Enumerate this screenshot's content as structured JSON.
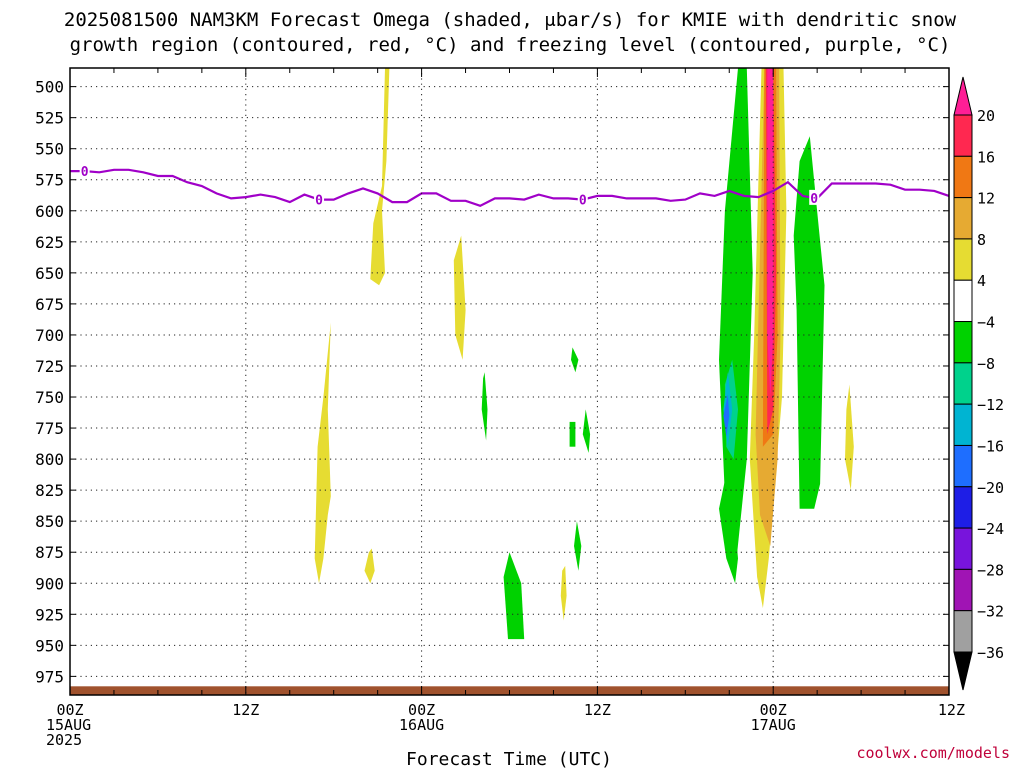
{
  "chart_data": {
    "type": "heatmap",
    "title_line1": "2025081500 NAM3KM Forecast Omega (shaded, μbar/s) for KMIE with dendritic snow",
    "title_line2": "growth region (contoured, red, °C) and freezing level (contoured, purple, °C)",
    "xlabel": "Forecast Time (UTC)",
    "credit": "coolwx.com/models",
    "x_hours": [
      0,
      12,
      24,
      36,
      48,
      60
    ],
    "x_tick_labels": [
      [
        "00Z",
        "15AUG",
        "2025"
      ],
      [
        "12Z"
      ],
      [
        "00Z",
        "16AUG"
      ],
      [
        "12Z"
      ],
      [
        "00Z",
        "17AUG"
      ],
      [
        "12Z"
      ]
    ],
    "x_range_hours": [
      0,
      60
    ],
    "y_range_hpa": [
      485,
      990
    ],
    "y_ticks": [
      500,
      525,
      550,
      575,
      600,
      625,
      650,
      675,
      700,
      725,
      750,
      775,
      800,
      825,
      850,
      875,
      900,
      925,
      950,
      975
    ],
    "grid": "dotted",
    "colorbar_labels": [
      "20",
      "16",
      "12",
      "8",
      "4",
      "−4",
      "−8",
      "−12",
      "−16",
      "−20",
      "−24",
      "−28",
      "−32",
      "−36"
    ],
    "colorbar_levels": [
      {
        "lo": 20,
        "hi": 24,
        "color": "#ff1e96"
      },
      {
        "lo": 16,
        "hi": 20,
        "color": "#ff2850"
      },
      {
        "lo": 12,
        "hi": 16,
        "color": "#f07814"
      },
      {
        "lo": 8,
        "hi": 12,
        "color": "#e6aa32"
      },
      {
        "lo": 4,
        "hi": 8,
        "color": "#e6dc32"
      },
      {
        "lo": -4,
        "hi": 4,
        "color": "#ffffff"
      },
      {
        "lo": -8,
        "hi": -4,
        "color": "#00d200"
      },
      {
        "lo": -12,
        "hi": -8,
        "color": "#00d28c"
      },
      {
        "lo": -16,
        "hi": -12,
        "color": "#00b4d2"
      },
      {
        "lo": -20,
        "hi": -16,
        "color": "#1e6eff"
      },
      {
        "lo": -24,
        "hi": -20,
        "color": "#1e1ee6"
      },
      {
        "lo": -28,
        "hi": -24,
        "color": "#7814dc"
      },
      {
        "lo": -32,
        "hi": -28,
        "color": "#a014b4"
      },
      {
        "lo": -36,
        "hi": -32,
        "color": "#a0a0a0"
      }
    ],
    "freezing_level": {
      "value_label": "0",
      "color": "#a000c8",
      "points": [
        [
          0,
          568
        ],
        [
          1,
          568
        ],
        [
          2,
          569
        ],
        [
          3,
          567
        ],
        [
          4,
          567
        ],
        [
          5,
          569
        ],
        [
          6,
          572
        ],
        [
          7,
          572
        ],
        [
          8,
          577
        ],
        [
          9,
          580
        ],
        [
          10,
          586
        ],
        [
          11,
          590
        ],
        [
          12,
          589
        ],
        [
          13,
          587
        ],
        [
          14,
          589
        ],
        [
          15,
          593
        ],
        [
          16,
          587
        ],
        [
          17,
          591
        ],
        [
          18,
          591
        ],
        [
          19,
          586
        ],
        [
          20,
          582
        ],
        [
          21,
          586
        ],
        [
          22,
          593
        ],
        [
          23,
          593
        ],
        [
          24,
          586
        ],
        [
          25,
          586
        ],
        [
          26,
          592
        ],
        [
          27,
          592
        ],
        [
          28,
          596
        ],
        [
          29,
          590
        ],
        [
          30,
          590
        ],
        [
          31,
          591
        ],
        [
          32,
          587
        ],
        [
          33,
          590
        ],
        [
          34,
          590
        ],
        [
          35,
          591
        ],
        [
          36,
          588
        ],
        [
          37,
          588
        ],
        [
          38,
          590
        ],
        [
          39,
          590
        ],
        [
          40,
          590
        ],
        [
          41,
          592
        ],
        [
          42,
          591
        ],
        [
          43,
          586
        ],
        [
          44,
          588
        ],
        [
          45,
          584
        ],
        [
          46,
          588
        ],
        [
          47,
          589
        ],
        [
          48,
          584
        ],
        [
          49,
          577
        ],
        [
          50,
          588
        ],
        [
          51,
          590
        ],
        [
          52,
          578
        ],
        [
          53,
          578
        ],
        [
          54,
          578
        ],
        [
          55,
          578
        ],
        [
          56,
          579
        ],
        [
          57,
          583
        ],
        [
          58,
          583
        ],
        [
          59,
          584
        ],
        [
          60,
          588
        ]
      ],
      "label_hours": [
        1,
        17,
        35,
        50.8
      ]
    },
    "terrain": {
      "color": "#a0522d",
      "pressure_hpa": 983
    },
    "omega_areas": [
      {
        "level": 5,
        "pts": [
          [
            21.8,
            485
          ],
          [
            21.6,
            560
          ],
          [
            21.3,
            600
          ],
          [
            21.5,
            650
          ],
          [
            21.1,
            660
          ],
          [
            20.5,
            655
          ],
          [
            20.7,
            610
          ],
          [
            21.3,
            580
          ],
          [
            21.5,
            485
          ]
        ]
      },
      {
        "level": 5,
        "pts": [
          [
            17.8,
            690
          ],
          [
            17.6,
            760
          ],
          [
            17.8,
            830
          ],
          [
            17.6,
            845
          ],
          [
            17.3,
            880
          ],
          [
            17.0,
            900
          ],
          [
            16.7,
            880
          ],
          [
            16.9,
            790
          ],
          [
            17.3,
            750
          ]
        ]
      },
      {
        "level": 5,
        "pts": [
          [
            20.6,
            872
          ],
          [
            20.8,
            890
          ],
          [
            20.5,
            900
          ],
          [
            20.1,
            890
          ],
          [
            20.4,
            875
          ]
        ]
      },
      {
        "level": 5,
        "pts": [
          [
            26.7,
            620
          ],
          [
            27.0,
            680
          ],
          [
            26.8,
            720
          ],
          [
            26.3,
            700
          ],
          [
            26.2,
            640
          ]
        ]
      },
      {
        "level": 5,
        "pts": [
          [
            33.8,
            886
          ],
          [
            33.9,
            910
          ],
          [
            33.7,
            930
          ],
          [
            33.5,
            910
          ],
          [
            33.6,
            890
          ]
        ]
      },
      {
        "level": 5,
        "pts": [
          [
            53.2,
            740
          ],
          [
            53.5,
            790
          ],
          [
            53.3,
            825
          ],
          [
            52.9,
            800
          ],
          [
            53.0,
            760
          ]
        ]
      },
      {
        "level": -6,
        "pts": [
          [
            28.3,
            730
          ],
          [
            28.5,
            760
          ],
          [
            28.4,
            785
          ],
          [
            28.1,
            760
          ],
          [
            28.2,
            735
          ]
        ]
      },
      {
        "level": -6,
        "pts": [
          [
            30.0,
            875
          ],
          [
            30.8,
            900
          ],
          [
            31.0,
            945
          ],
          [
            29.9,
            945
          ],
          [
            29.6,
            895
          ]
        ]
      },
      {
        "level": -6,
        "pts": [
          [
            34.3,
            710
          ],
          [
            34.7,
            720
          ],
          [
            34.5,
            730
          ],
          [
            34.2,
            720
          ]
        ]
      },
      {
        "level": -6,
        "pts": [
          [
            34.1,
            770
          ],
          [
            34.5,
            770
          ],
          [
            34.5,
            790
          ],
          [
            34.1,
            790
          ]
        ]
      },
      {
        "level": -6,
        "pts": [
          [
            35.2,
            760
          ],
          [
            35.5,
            780
          ],
          [
            35.4,
            795
          ],
          [
            35.0,
            780
          ]
        ]
      },
      {
        "level": -6,
        "pts": [
          [
            34.6,
            850
          ],
          [
            34.9,
            870
          ],
          [
            34.7,
            890
          ],
          [
            34.4,
            870
          ]
        ]
      },
      {
        "level": -6,
        "pts": [
          [
            49.8,
            560
          ],
          [
            50.5,
            540
          ],
          [
            51.0,
            600
          ],
          [
            51.5,
            660
          ],
          [
            51.2,
            820
          ],
          [
            50.8,
            840
          ],
          [
            49.8,
            840
          ],
          [
            49.6,
            680
          ],
          [
            49.4,
            620
          ]
        ]
      },
      {
        "level": -6,
        "pts": [
          [
            45.0,
            800
          ],
          [
            45.6,
            880
          ],
          [
            45.4,
            900
          ],
          [
            44.8,
            880
          ],
          [
            44.3,
            840
          ]
        ]
      },
      {
        "level": -6,
        "pts": [
          [
            46.2,
            485
          ],
          [
            46.6,
            650
          ],
          [
            46.2,
            800
          ],
          [
            45.5,
            880
          ],
          [
            44.7,
            830
          ],
          [
            44.3,
            720
          ],
          [
            44.7,
            600
          ],
          [
            45.6,
            485
          ]
        ]
      },
      {
        "level": -10,
        "pts": [
          [
            45.2,
            720
          ],
          [
            45.6,
            760
          ],
          [
            45.3,
            800
          ],
          [
            44.8,
            790
          ],
          [
            44.7,
            740
          ]
        ]
      },
      {
        "level": -14,
        "pts": [
          [
            44.9,
            730
          ],
          [
            45.2,
            760
          ],
          [
            44.9,
            790
          ],
          [
            44.6,
            760
          ]
        ]
      },
      {
        "level": -18,
        "pts": [
          [
            44.9,
            748
          ],
          [
            45.0,
            765
          ],
          [
            44.8,
            782
          ],
          [
            44.6,
            765
          ]
        ]
      },
      {
        "level": 5,
        "pts": [
          [
            48.7,
            485
          ],
          [
            48.9,
            600
          ],
          [
            48.6,
            750
          ],
          [
            47.7,
            880
          ],
          [
            47.3,
            920
          ],
          [
            46.9,
            895
          ],
          [
            46.4,
            800
          ],
          [
            46.7,
            700
          ],
          [
            47.2,
            485
          ]
        ]
      },
      {
        "level": 10,
        "pts": [
          [
            48.4,
            485
          ],
          [
            48.5,
            700
          ],
          [
            48.3,
            800
          ],
          [
            47.8,
            870
          ],
          [
            47.1,
            845
          ],
          [
            46.8,
            780
          ],
          [
            47.4,
            485
          ]
        ]
      },
      {
        "level": 14,
        "pts": [
          [
            48.2,
            485
          ],
          [
            48.3,
            700
          ],
          [
            48.0,
            780
          ],
          [
            47.3,
            790
          ],
          [
            47.4,
            485
          ]
        ]
      },
      {
        "level": 18,
        "pts": [
          [
            48.0,
            485
          ],
          [
            48.2,
            650
          ],
          [
            48.0,
            760
          ],
          [
            47.6,
            780
          ],
          [
            47.5,
            485
          ]
        ]
      },
      {
        "level": 22,
        "pts": [
          [
            48.0,
            485
          ],
          [
            48.0,
            700
          ],
          [
            47.8,
            750
          ],
          [
            47.6,
            700
          ],
          [
            47.6,
            485
          ]
        ]
      }
    ]
  }
}
